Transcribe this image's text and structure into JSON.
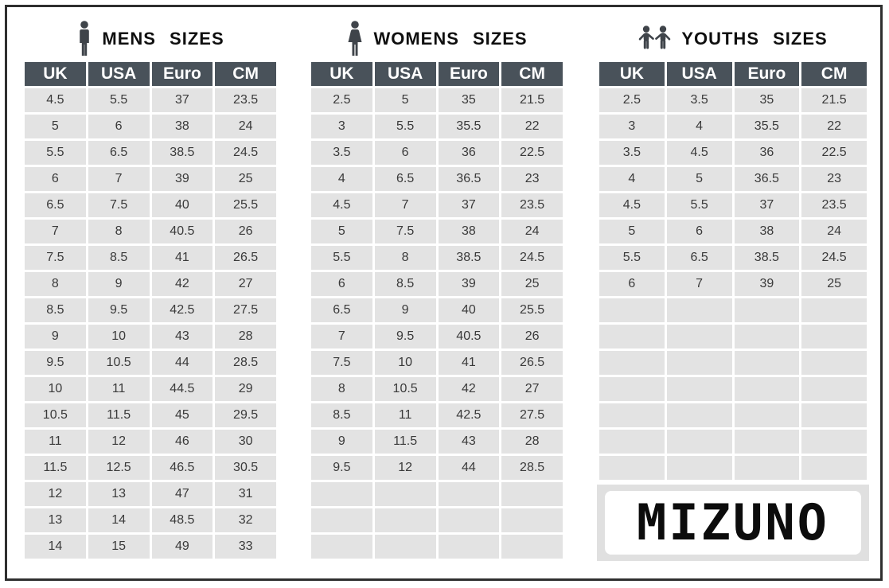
{
  "columns": [
    "UK",
    "USA",
    "Euro",
    "CM"
  ],
  "tables": [
    {
      "id": "mens",
      "title": "MENS  SIZES",
      "icon": "man-icon",
      "rows": [
        [
          "4.5",
          "5.5",
          "37",
          "23.5"
        ],
        [
          "5",
          "6",
          "38",
          "24"
        ],
        [
          "5.5",
          "6.5",
          "38.5",
          "24.5"
        ],
        [
          "6",
          "7",
          "39",
          "25"
        ],
        [
          "6.5",
          "7.5",
          "40",
          "25.5"
        ],
        [
          "7",
          "8",
          "40.5",
          "26"
        ],
        [
          "7.5",
          "8.5",
          "41",
          "26.5"
        ],
        [
          "8",
          "9",
          "42",
          "27"
        ],
        [
          "8.5",
          "9.5",
          "42.5",
          "27.5"
        ],
        [
          "9",
          "10",
          "43",
          "28"
        ],
        [
          "9.5",
          "10.5",
          "44",
          "28.5"
        ],
        [
          "10",
          "11",
          "44.5",
          "29"
        ],
        [
          "10.5",
          "11.5",
          "45",
          "29.5"
        ],
        [
          "11",
          "12",
          "46",
          "30"
        ],
        [
          "11.5",
          "12.5",
          "46.5",
          "30.5"
        ],
        [
          "12",
          "13",
          "47",
          "31"
        ],
        [
          "13",
          "14",
          "48.5",
          "32"
        ],
        [
          "14",
          "15",
          "49",
          "33"
        ]
      ]
    },
    {
      "id": "womens",
      "title": "WOMENS  SIZES",
      "icon": "woman-icon",
      "rows": [
        [
          "2.5",
          "5",
          "35",
          "21.5"
        ],
        [
          "3",
          "5.5",
          "35.5",
          "22"
        ],
        [
          "3.5",
          "6",
          "36",
          "22.5"
        ],
        [
          "4",
          "6.5",
          "36.5",
          "23"
        ],
        [
          "4.5",
          "7",
          "37",
          "23.5"
        ],
        [
          "5",
          "7.5",
          "38",
          "24"
        ],
        [
          "5.5",
          "8",
          "38.5",
          "24.5"
        ],
        [
          "6",
          "8.5",
          "39",
          "25"
        ],
        [
          "6.5",
          "9",
          "40",
          "25.5"
        ],
        [
          "7",
          "9.5",
          "40.5",
          "26"
        ],
        [
          "7.5",
          "10",
          "41",
          "26.5"
        ],
        [
          "8",
          "10.5",
          "42",
          "27"
        ],
        [
          "8.5",
          "11",
          "42.5",
          "27.5"
        ],
        [
          "9",
          "11.5",
          "43",
          "28"
        ],
        [
          "9.5",
          "12",
          "44",
          "28.5"
        ],
        [
          "",
          "",
          "",
          ""
        ],
        [
          "",
          "",
          "",
          ""
        ],
        [
          "",
          "",
          "",
          ""
        ]
      ]
    },
    {
      "id": "youths",
      "title": "YOUTHS  SIZES",
      "icon": "children-icon",
      "rows": [
        [
          "2.5",
          "3.5",
          "35",
          "21.5"
        ],
        [
          "3",
          "4",
          "35.5",
          "22"
        ],
        [
          "3.5",
          "4.5",
          "36",
          "22.5"
        ],
        [
          "4",
          "5",
          "36.5",
          "23"
        ],
        [
          "4.5",
          "5.5",
          "37",
          "23.5"
        ],
        [
          "5",
          "6",
          "38",
          "24"
        ],
        [
          "5.5",
          "6.5",
          "38.5",
          "24.5"
        ],
        [
          "6",
          "7",
          "39",
          "25"
        ],
        [
          "",
          "",
          "",
          ""
        ],
        [
          "",
          "",
          "",
          ""
        ],
        [
          "",
          "",
          "",
          ""
        ],
        [
          "",
          "",
          "",
          ""
        ],
        [
          "",
          "",
          "",
          ""
        ],
        [
          "",
          "",
          "",
          ""
        ],
        [
          "",
          "",
          "",
          ""
        ]
      ]
    }
  ],
  "logo": {
    "text": "MIZUNO"
  },
  "colors": {
    "header-bg": "#49525a",
    "header-text": "#ffffff",
    "cell-bg": "#e3e3e3",
    "cell-text": "#3a3a3a",
    "title-text": "#0f0f0f",
    "icon-fill": "#3f444a",
    "frame-border": "#2f2f2f",
    "logo-panel-bg": "#e0e0e0",
    "logo-box-bg": "#ffffff",
    "logo-text": "#0c0c0c",
    "page-bg": "#ffffff"
  }
}
